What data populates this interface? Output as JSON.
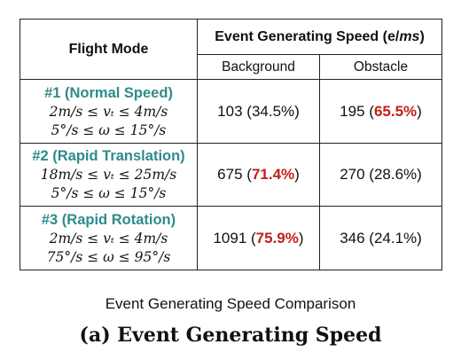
{
  "table": {
    "header": {
      "flight_mode": "Flight Mode",
      "speed": "Event Generating Speed (e/",
      "speed_unit": "ms",
      "speed_close": ")",
      "background": "Background",
      "obstacle": "Obstacle"
    },
    "rows": [
      {
        "title": "#1 (Normal Speed)",
        "vel": "2m/s ≤ vₜ ≤ 4m/s",
        "omega": "5°/s ≤ ω ≤ 15°/s",
        "bg_value": "103",
        "bg_pct": "34.5%",
        "obs_value": "195",
        "obs_pct": "65.5%"
      },
      {
        "title": "#2 (Rapid Translation)",
        "vel": "18m/s ≤ vₜ ≤ 25m/s",
        "omega": "5°/s ≤ ω ≤ 15°/s",
        "bg_value": "675",
        "bg_pct": "71.4%",
        "obs_value": "270",
        "obs_pct": "28.6%"
      },
      {
        "title": "#3 (Rapid Rotation)",
        "vel": "2m/s ≤ vₜ ≤ 4m/s",
        "omega": "75°/s ≤ ω ≤ 95°/s",
        "bg_value": "1091",
        "bg_pct": "75.9%",
        "obs_value": "346",
        "obs_pct": "24.1%"
      }
    ]
  },
  "caption": "Event Generating Speed Comparison",
  "subfigure_title": "(a) Event Generating Speed",
  "colors": {
    "mode_title": "#2e8b8b",
    "highlight": "#c0201a"
  }
}
